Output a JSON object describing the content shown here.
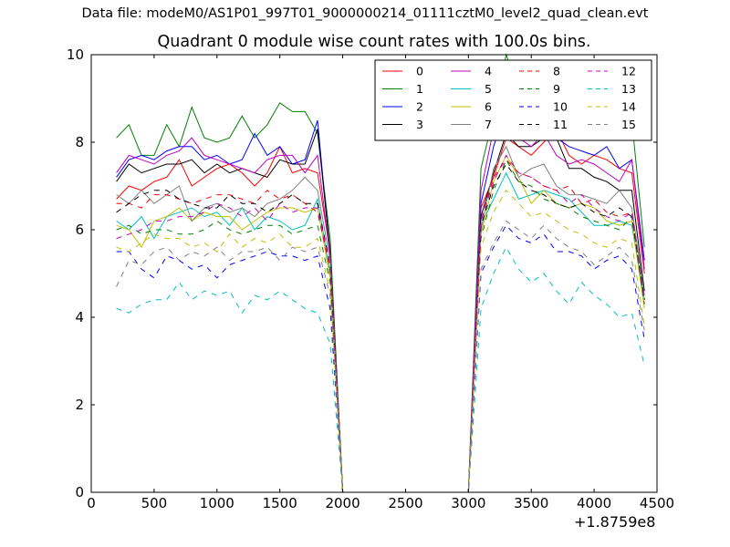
{
  "figure": {
    "suptitle": "Data file: modeM0/AS1P01_997T01_9000000214_01111cztM0_level2_quad_clean.evt"
  },
  "chart_data": {
    "type": "line",
    "title": "Quadrant 0 module wise count rates with 100.0s bins.",
    "xlabel": "",
    "ylabel": "",
    "xlim": [
      0,
      4500
    ],
    "ylim": [
      0,
      10
    ],
    "x_offset_label": "+1.8759e8",
    "xticks": [
      0,
      500,
      1000,
      1500,
      2000,
      2500,
      3000,
      3500,
      4000,
      4500
    ],
    "yticks": [
      0,
      2,
      4,
      6,
      8,
      10
    ],
    "grid": false,
    "legend_position": "top-right",
    "x": [
      200,
      300,
      400,
      500,
      600,
      700,
      800,
      900,
      1000,
      1100,
      1200,
      1300,
      1400,
      1500,
      1600,
      1700,
      1800,
      1900,
      2000,
      2100,
      2200,
      2300,
      2400,
      2500,
      2600,
      2700,
      2800,
      2900,
      3000,
      3100,
      3200,
      3300,
      3400,
      3500,
      3600,
      3700,
      3800,
      3900,
      4000,
      4100,
      4200,
      4300,
      4400
    ],
    "series": [
      {
        "name": "0",
        "color": "#ff0000",
        "dash": "solid",
        "values": [
          6.7,
          7.0,
          6.9,
          7.1,
          7.2,
          7.6,
          7.0,
          7.2,
          7.4,
          7.5,
          7.3,
          7.0,
          7.3,
          7.9,
          7.3,
          7.4,
          7.3,
          5.5,
          0,
          0,
          0,
          0,
          0,
          0,
          0,
          0,
          0,
          0,
          0,
          6.5,
          7.2,
          8.1,
          7.9,
          7.7,
          8.0,
          8.3,
          7.7,
          7.5,
          7.7,
          7.6,
          7.4,
          7.3,
          5.0
        ]
      },
      {
        "name": "1",
        "color": "#008000",
        "dash": "solid",
        "values": [
          8.1,
          8.4,
          7.7,
          7.7,
          8.4,
          7.9,
          8.8,
          8.1,
          8.0,
          8.1,
          8.6,
          8.1,
          8.4,
          8.9,
          8.7,
          8.7,
          8.2,
          5.8,
          0,
          0,
          0,
          0,
          0,
          0,
          0,
          0,
          0,
          0,
          0,
          7.4,
          8.6,
          10.0,
          9.2,
          8.7,
          8.8,
          9.1,
          8.6,
          8.6,
          8.5,
          8.3,
          8.4,
          8.5,
          5.6
        ]
      },
      {
        "name": "2",
        "color": "#0000ff",
        "dash": "solid",
        "values": [
          7.2,
          7.6,
          7.7,
          7.6,
          7.8,
          7.9,
          7.9,
          7.6,
          7.7,
          7.5,
          7.6,
          8.2,
          7.7,
          7.9,
          7.5,
          7.6,
          8.5,
          5.4,
          0,
          0,
          0,
          0,
          0,
          0,
          0,
          0,
          0,
          0,
          0,
          6.6,
          7.9,
          8.8,
          8.3,
          8.2,
          8.3,
          8.1,
          7.9,
          7.8,
          7.7,
          7.9,
          7.4,
          7.6,
          5.3
        ]
      },
      {
        "name": "3",
        "color": "#000000",
        "dash": "solid",
        "values": [
          7.1,
          7.5,
          7.3,
          7.4,
          7.5,
          7.5,
          7.6,
          7.3,
          7.5,
          7.3,
          7.4,
          7.3,
          7.2,
          7.6,
          7.5,
          7.5,
          8.3,
          5.5,
          0,
          0,
          0,
          0,
          0,
          0,
          0,
          0,
          0,
          0,
          0,
          6.3,
          7.3,
          8.2,
          7.9,
          7.9,
          8.1,
          8.1,
          7.4,
          7.4,
          7.2,
          7.1,
          6.9,
          6.9,
          4.6
        ]
      },
      {
        "name": "4",
        "color": "#c000c0",
        "dash": "solid",
        "values": [
          7.3,
          7.7,
          7.6,
          7.5,
          7.7,
          7.8,
          8.1,
          7.7,
          7.6,
          7.5,
          7.4,
          7.3,
          7.6,
          7.7,
          7.7,
          7.3,
          7.7,
          5.4,
          0,
          0,
          0,
          0,
          0,
          0,
          0,
          0,
          0,
          0,
          0,
          6.9,
          8.3,
          9.1,
          8.1,
          7.9,
          8.2,
          7.7,
          7.5,
          7.6,
          7.5,
          7.3,
          7.1,
          7.6,
          5.1
        ]
      },
      {
        "name": "5",
        "color": "#00c0c0",
        "dash": "solid",
        "values": [
          6.2,
          6.0,
          6.3,
          5.8,
          6.3,
          6.4,
          6.5,
          6.3,
          6.4,
          6.1,
          6.5,
          6.0,
          6.3,
          6.2,
          6.0,
          6.1,
          6.7,
          5.0,
          0,
          0,
          0,
          0,
          0,
          0,
          0,
          0,
          0,
          0,
          0,
          6.1,
          6.7,
          7.3,
          6.7,
          6.8,
          6.9,
          6.8,
          6.7,
          6.4,
          6.1,
          6.1,
          6.2,
          6.1,
          4.4
        ]
      },
      {
        "name": "6",
        "color": "#c0c000",
        "dash": "solid",
        "values": [
          6.1,
          6.0,
          5.6,
          6.2,
          6.3,
          6.5,
          6.2,
          6.4,
          6.3,
          6.3,
          6.0,
          6.2,
          6.4,
          6.5,
          6.5,
          6.4,
          6.5,
          4.9,
          0,
          0,
          0,
          0,
          0,
          0,
          0,
          0,
          0,
          0,
          0,
          5.9,
          7.1,
          7.7,
          7.2,
          6.6,
          6.9,
          6.6,
          6.5,
          6.6,
          6.5,
          6.2,
          6.1,
          6.2,
          4.2
        ]
      },
      {
        "name": "7",
        "color": "#808080",
        "dash": "solid",
        "values": [
          6.8,
          6.6,
          6.9,
          6.6,
          6.8,
          7.0,
          6.2,
          6.5,
          6.6,
          6.4,
          6.5,
          6.3,
          6.6,
          6.7,
          6.9,
          7.2,
          6.9,
          5.3,
          0,
          0,
          0,
          0,
          0,
          0,
          0,
          0,
          0,
          0,
          0,
          6.0,
          7.4,
          7.9,
          7.2,
          7.4,
          7.5,
          7.0,
          6.8,
          6.8,
          6.7,
          6.6,
          6.9,
          6.5,
          4.5
        ]
      },
      {
        "name": "8",
        "color": "#ff0000",
        "dash": "dashed",
        "values": [
          6.6,
          6.6,
          6.5,
          6.8,
          6.8,
          6.7,
          6.6,
          6.7,
          6.8,
          6.8,
          6.7,
          6.6,
          6.9,
          6.7,
          6.8,
          6.6,
          6.4,
          5.1,
          0,
          0,
          0,
          0,
          0,
          0,
          0,
          0,
          0,
          0,
          0,
          6.2,
          7.2,
          7.6,
          7.3,
          7.2,
          7.0,
          6.9,
          7.0,
          6.6,
          6.7,
          6.4,
          6.3,
          6.4,
          4.3
        ]
      },
      {
        "name": "9",
        "color": "#008000",
        "dash": "dashed",
        "values": [
          6.0,
          6.1,
          5.9,
          6.0,
          6.0,
          5.9,
          5.9,
          6.0,
          6.2,
          6.0,
          5.9,
          6.0,
          6.1,
          6.1,
          5.9,
          6.0,
          6.1,
          4.8,
          0,
          0,
          0,
          0,
          0,
          0,
          0,
          0,
          0,
          0,
          0,
          5.8,
          6.9,
          7.6,
          7.1,
          7.0,
          6.7,
          6.6,
          6.5,
          6.3,
          6.2,
          6.1,
          6.0,
          6.3,
          4.3
        ]
      },
      {
        "name": "10",
        "color": "#0000ff",
        "dash": "dashed",
        "values": [
          5.5,
          5.5,
          5.1,
          4.9,
          5.4,
          5.3,
          5.1,
          5.2,
          4.9,
          5.2,
          5.3,
          5.4,
          5.5,
          5.4,
          5.4,
          5.3,
          5.4,
          4.2,
          0,
          0,
          0,
          0,
          0,
          0,
          0,
          0,
          0,
          0,
          0,
          5.0,
          5.6,
          6.1,
          5.8,
          5.7,
          5.9,
          5.5,
          5.5,
          5.4,
          5.1,
          5.3,
          5.4,
          5.1,
          3.5
        ]
      },
      {
        "name": "11",
        "color": "#000000",
        "dash": "dashed",
        "values": [
          6.4,
          6.6,
          6.8,
          6.9,
          6.9,
          6.7,
          6.6,
          6.5,
          6.5,
          6.8,
          6.6,
          6.6,
          6.4,
          6.6,
          6.8,
          6.6,
          6.6,
          5.2,
          0,
          0,
          0,
          0,
          0,
          0,
          0,
          0,
          0,
          0,
          0,
          6.1,
          7.0,
          7.5,
          7.1,
          6.9,
          6.8,
          6.6,
          6.5,
          6.6,
          6.4,
          6.3,
          6.5,
          6.3,
          4.4
        ]
      },
      {
        "name": "12",
        "color": "#c000c0",
        "dash": "dashed",
        "values": [
          5.8,
          5.9,
          6.0,
          6.2,
          6.2,
          6.3,
          6.3,
          6.4,
          6.6,
          6.5,
          6.3,
          6.5,
          6.2,
          6.6,
          6.4,
          6.5,
          6.5,
          5.2,
          0,
          0,
          0,
          0,
          0,
          0,
          0,
          0,
          0,
          0,
          0,
          6.2,
          7.1,
          7.7,
          7.3,
          7.2,
          7.0,
          6.9,
          6.6,
          6.8,
          6.5,
          6.3,
          6.2,
          6.4,
          4.4
        ]
      },
      {
        "name": "13",
        "color": "#00c0c0",
        "dash": "dashed",
        "values": [
          4.2,
          4.1,
          4.3,
          4.4,
          4.4,
          4.8,
          4.4,
          4.6,
          4.5,
          4.6,
          4.1,
          4.5,
          4.4,
          4.6,
          4.4,
          4.2,
          4.1,
          3.4,
          0,
          0,
          0,
          0,
          0,
          0,
          0,
          0,
          0,
          0,
          0,
          4.2,
          5.0,
          5.6,
          5.1,
          4.8,
          5.0,
          4.6,
          4.3,
          4.8,
          4.5,
          4.3,
          4.0,
          4.1,
          2.9
        ]
      },
      {
        "name": "14",
        "color": "#c0c000",
        "dash": "dashed",
        "values": [
          5.6,
          5.5,
          5.7,
          5.9,
          5.8,
          5.8,
          5.6,
          5.7,
          5.5,
          5.9,
          5.6,
          5.8,
          5.7,
          5.9,
          5.6,
          5.6,
          5.8,
          4.6,
          0,
          0,
          0,
          0,
          0,
          0,
          0,
          0,
          0,
          0,
          0,
          5.6,
          6.4,
          6.9,
          6.6,
          6.3,
          6.4,
          6.2,
          6.0,
          5.9,
          5.7,
          5.6,
          5.8,
          5.7,
          3.8
        ]
      },
      {
        "name": "15",
        "color": "#808080",
        "dash": "dashed",
        "values": [
          4.7,
          5.3,
          5.2,
          5.5,
          5.6,
          5.3,
          5.5,
          5.4,
          5.6,
          5.3,
          5.5,
          5.5,
          5.6,
          5.3,
          5.6,
          5.5,
          5.6,
          4.5,
          0,
          0,
          0,
          0,
          0,
          0,
          0,
          0,
          0,
          0,
          0,
          5.1,
          5.7,
          6.2,
          6.0,
          5.8,
          6.1,
          5.8,
          5.6,
          5.5,
          5.2,
          5.4,
          5.6,
          5.3,
          3.7
        ]
      }
    ]
  }
}
